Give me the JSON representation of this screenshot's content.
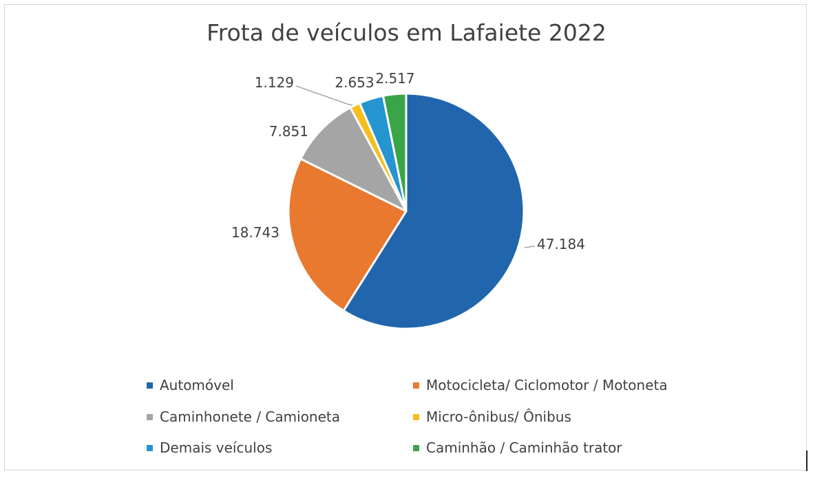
{
  "chart_data": {
    "type": "pie",
    "title": "Frota de veículos em Lafaiete 2022",
    "categories": [
      "Automóvel",
      "Motocicleta/ Ciclomotor / Motoneta",
      "Caminhonete / Camioneta",
      "Micro-ônibus/ Ônibus",
      "Demais veículos",
      "Caminhão / Caminhão trator"
    ],
    "values": [
      47184,
      18743,
      7851,
      1129,
      2653,
      2517
    ],
    "data_labels": [
      "47.184",
      "18.743",
      "7.851",
      "1.129",
      "2.653",
      "2.517"
    ],
    "colors": [
      "#2166ac",
      "#e8792f",
      "#a5a5a5",
      "#f5bd1f",
      "#2495cf",
      "#3aa547"
    ],
    "legend_position": "bottom",
    "start_angle_deg": 0,
    "direction": "clockwise"
  }
}
